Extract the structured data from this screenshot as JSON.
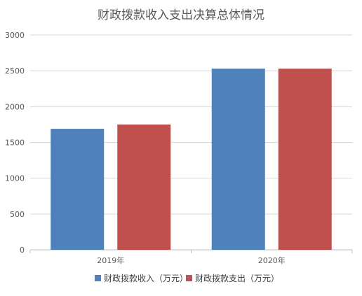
{
  "chart_data": {
    "type": "bar",
    "title": "财政拨款收入支出决算总体情况",
    "xlabel": "",
    "ylabel": "",
    "categories": [
      "2019年",
      "2020年"
    ],
    "series": [
      {
        "name": "财政拨款收入（万元）",
        "values": [
          1690,
          2530
        ],
        "color": "#4f81bd"
      },
      {
        "name": "财政拨款支出（万元）",
        "values": [
          1750,
          2530
        ],
        "color": "#c0504d"
      }
    ],
    "ylim": [
      0,
      3000
    ],
    "yticks": [
      0,
      500,
      1000,
      1500,
      2000,
      2500,
      3000
    ],
    "grid": true,
    "legend": "bottom"
  }
}
